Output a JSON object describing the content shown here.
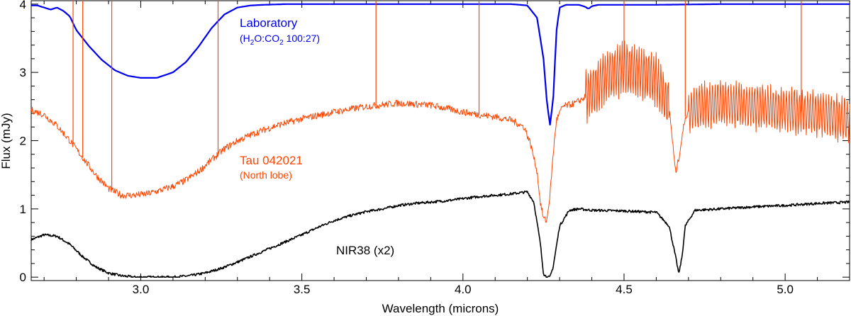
{
  "chart_data": {
    "type": "line",
    "title": "",
    "xlabel": "Wavelength (microns)",
    "ylabel": "Flux (mJy)",
    "xlim": [
      2.66,
      5.2
    ],
    "ylim": [
      -0.05,
      4.05
    ],
    "xticks": [
      3.0,
      3.5,
      4.0,
      4.5,
      5.0
    ],
    "xtick_labels": [
      "3.0",
      "3.5",
      "4.0",
      "4.5",
      "5.0"
    ],
    "yticks": [
      0,
      1,
      2,
      3,
      4
    ],
    "ytick_labels": [
      "0",
      "1",
      "2",
      "3",
      "4"
    ],
    "grid": false,
    "series": [
      {
        "name": "Laboratory",
        "color": "#0000ee",
        "x": [
          2.66,
          2.68,
          2.7,
          2.72,
          2.74,
          2.76,
          2.78,
          2.8,
          2.84,
          2.88,
          2.92,
          2.96,
          3.0,
          3.05,
          3.1,
          3.14,
          3.18,
          3.22,
          3.26,
          3.3,
          3.34,
          3.38,
          3.45,
          3.6,
          3.8,
          4.0,
          4.15,
          4.2,
          4.23,
          4.25,
          4.26,
          4.27,
          4.28,
          4.29,
          4.3,
          4.32,
          4.36,
          4.38,
          4.39,
          4.4,
          4.42,
          4.6,
          4.8,
          5.0,
          5.2
        ],
        "y": [
          3.98,
          3.98,
          3.95,
          3.92,
          3.95,
          3.9,
          3.82,
          3.62,
          3.38,
          3.18,
          3.03,
          2.95,
          2.92,
          2.92,
          3.0,
          3.15,
          3.38,
          3.65,
          3.85,
          3.95,
          3.98,
          3.99,
          4.0,
          4.0,
          4.0,
          4.0,
          4.0,
          3.98,
          3.8,
          3.2,
          2.6,
          2.22,
          2.6,
          3.6,
          3.95,
          3.99,
          3.99,
          3.96,
          3.93,
          3.97,
          3.99,
          3.99,
          4.0,
          4.0,
          4.0
        ]
      },
      {
        "name": "Tau 042021",
        "color": "#ff4500",
        "x": [
          2.66,
          2.7,
          2.74,
          2.78,
          2.82,
          2.86,
          2.9,
          2.94,
          2.98,
          3.02,
          3.06,
          3.1,
          3.14,
          3.18,
          3.22,
          3.26,
          3.3,
          3.36,
          3.42,
          3.5,
          3.6,
          3.7,
          3.8,
          3.9,
          4.0,
          4.05,
          4.1,
          4.15,
          4.19,
          4.21,
          4.23,
          4.24,
          4.25,
          4.26,
          4.27,
          4.28,
          4.29,
          4.31,
          4.35,
          4.4,
          4.45,
          4.5,
          4.55,
          4.6,
          4.64,
          4.66,
          4.67,
          4.69,
          4.72,
          4.8,
          4.9,
          5.0,
          5.1,
          5.2
        ],
        "y": [
          2.45,
          2.38,
          2.22,
          2.0,
          1.75,
          1.5,
          1.3,
          1.2,
          1.2,
          1.22,
          1.27,
          1.33,
          1.42,
          1.55,
          1.72,
          1.88,
          2.0,
          2.12,
          2.22,
          2.32,
          2.42,
          2.5,
          2.55,
          2.52,
          2.42,
          2.38,
          2.35,
          2.3,
          2.2,
          1.95,
          1.55,
          1.1,
          0.86,
          0.82,
          1.2,
          1.8,
          2.3,
          2.5,
          2.55,
          2.7,
          2.95,
          3.05,
          3.0,
          2.9,
          2.5,
          1.52,
          1.75,
          2.35,
          2.5,
          2.55,
          2.5,
          2.45,
          2.4,
          2.3
        ]
      },
      {
        "name": "NIR38 (x2)",
        "color": "#000000",
        "x": [
          2.66,
          2.7,
          2.74,
          2.78,
          2.82,
          2.86,
          2.9,
          2.94,
          2.98,
          3.02,
          3.06,
          3.1,
          3.15,
          3.2,
          3.25,
          3.3,
          3.35,
          3.4,
          3.45,
          3.5,
          3.55,
          3.6,
          3.65,
          3.7,
          3.75,
          3.8,
          3.85,
          3.9,
          3.95,
          4.0,
          4.05,
          4.1,
          4.15,
          4.2,
          4.22,
          4.24,
          4.25,
          4.26,
          4.27,
          4.28,
          4.3,
          4.33,
          4.36,
          4.4,
          4.5,
          4.6,
          4.64,
          4.66,
          4.67,
          4.68,
          4.69,
          4.72,
          4.8,
          4.9,
          5.0,
          5.1,
          5.2
        ],
        "y": [
          0.55,
          0.62,
          0.6,
          0.48,
          0.3,
          0.15,
          0.06,
          0.02,
          0.0,
          0.0,
          0.0,
          0.0,
          0.02,
          0.06,
          0.13,
          0.22,
          0.32,
          0.42,
          0.52,
          0.62,
          0.73,
          0.83,
          0.9,
          0.96,
          1.0,
          1.05,
          1.08,
          1.1,
          1.12,
          1.15,
          1.18,
          1.2,
          1.22,
          1.25,
          1.1,
          0.5,
          0.05,
          0.0,
          0.0,
          0.15,
          0.75,
          0.98,
          1.0,
          0.98,
          0.97,
          0.95,
          0.75,
          0.3,
          0.05,
          0.3,
          0.75,
          0.98,
          1.0,
          1.03,
          1.05,
          1.08,
          1.1
        ]
      }
    ],
    "annotations": [
      {
        "series": "Laboratory",
        "label": "Laboratory",
        "sub_label": "(H2O:CO2 100:27)",
        "sub_parts": [
          "(H",
          "2",
          "O:CO",
          "2",
          " 100:27)"
        ]
      },
      {
        "series": "Tau 042021",
        "label": "Tau 042021",
        "sub_label": "(North lobe)"
      },
      {
        "series": "NIR38 (x2)",
        "label": "NIR38 (x2)"
      }
    ]
  }
}
